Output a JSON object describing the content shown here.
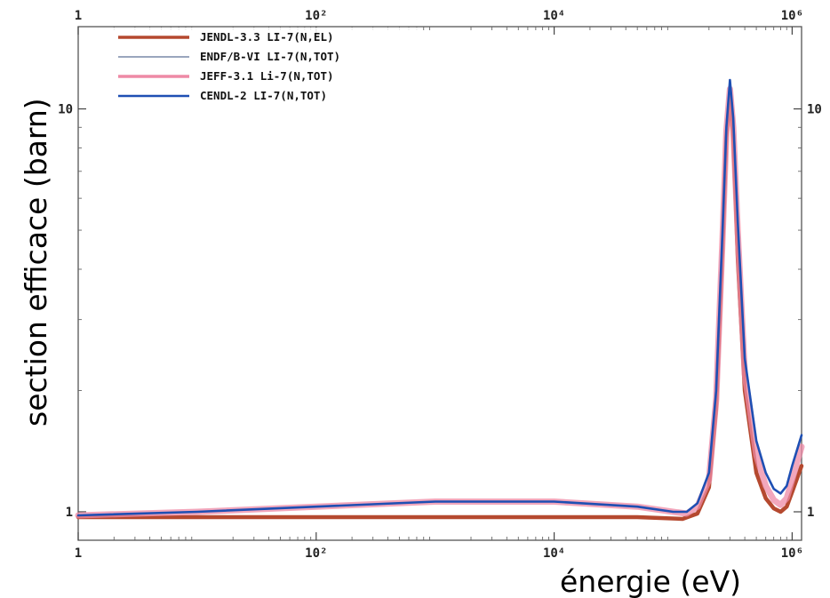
{
  "chart_data": {
    "type": "line",
    "xlabel": "énergie (eV)",
    "ylabel": "section efficace (barn)",
    "xscale": "log",
    "yscale": "log",
    "xlim": [
      1,
      1200000
    ],
    "ylim": [
      0.85,
      16
    ],
    "grid": false,
    "legend_position": "top-left",
    "x_ticks": [
      {
        "value": 1,
        "label": "1"
      },
      {
        "value": 100,
        "label": "10²"
      },
      {
        "value": 10000,
        "label": "10⁴"
      },
      {
        "value": 1000000,
        "label": "10⁶"
      }
    ],
    "y_ticks": [
      {
        "value": 1,
        "label": "1"
      },
      {
        "value": 10,
        "label": "10"
      }
    ],
    "series": [
      {
        "name": "JENDL-3.3 LI-7(N,EL)",
        "color": "#b5492f",
        "width": 4.5,
        "x": [
          1,
          10,
          100,
          1000,
          10000,
          50000,
          120000,
          160000,
          200000,
          230000,
          260000,
          280000,
          300000,
          320000,
          350000,
          400000,
          500000,
          600000,
          700000,
          800000,
          900000,
          1000000,
          1200000
        ],
        "y": [
          0.97,
          0.97,
          0.97,
          0.97,
          0.97,
          0.97,
          0.96,
          0.99,
          1.15,
          1.8,
          4.5,
          8.5,
          10.8,
          8.5,
          4.2,
          2.0,
          1.25,
          1.08,
          1.02,
          1.0,
          1.03,
          1.12,
          1.3
        ]
      },
      {
        "name": "ENDF/B-VI LI-7(N,TOT)",
        "color": "#9aa6bd",
        "width": 2,
        "x": [
          1,
          10,
          100,
          1000,
          10000,
          50000,
          100000,
          130000,
          160000,
          200000,
          230000,
          260000,
          280000,
          300000,
          320000,
          350000,
          400000,
          500000,
          600000,
          700000,
          800000,
          900000,
          1000000,
          1200000
        ],
        "y": [
          0.98,
          1.0,
          1.03,
          1.06,
          1.06,
          1.03,
          1.0,
          1.0,
          1.05,
          1.25,
          2.0,
          5.0,
          9.0,
          11.8,
          9.5,
          5.2,
          2.4,
          1.5,
          1.25,
          1.14,
          1.11,
          1.16,
          1.3,
          1.55
        ]
      },
      {
        "name": "JEFF-3.1 Li-7(N,TOT)",
        "color": "#ee8aa6",
        "width": 7,
        "x": [
          1,
          10,
          100,
          1000,
          10000,
          50000,
          100000,
          130000,
          160000,
          200000,
          230000,
          260000,
          280000,
          300000,
          320000,
          350000,
          400000,
          500000,
          600000,
          700000,
          800000,
          900000,
          1000000,
          1200000
        ],
        "y": [
          0.98,
          1.0,
          1.03,
          1.06,
          1.06,
          1.03,
          1.0,
          0.99,
          1.03,
          1.2,
          1.9,
          4.8,
          8.8,
          11.2,
          9.0,
          4.9,
          2.2,
          1.38,
          1.16,
          1.07,
          1.04,
          1.08,
          1.2,
          1.45
        ]
      },
      {
        "name": "CENDL-2 LI-7(N,TOT)",
        "color": "#1e4fb3",
        "width": 2.6,
        "x": [
          1,
          10,
          100,
          1000,
          10000,
          50000,
          100000,
          130000,
          160000,
          200000,
          230000,
          260000,
          280000,
          300000,
          320000,
          350000,
          400000,
          500000,
          600000,
          700000,
          800000,
          900000,
          1000000,
          1200000
        ],
        "y": [
          0.98,
          1.0,
          1.03,
          1.06,
          1.06,
          1.03,
          1.0,
          1.0,
          1.05,
          1.25,
          2.0,
          5.0,
          9.0,
          11.8,
          9.5,
          5.2,
          2.4,
          1.5,
          1.25,
          1.14,
          1.11,
          1.16,
          1.3,
          1.55
        ]
      }
    ]
  }
}
